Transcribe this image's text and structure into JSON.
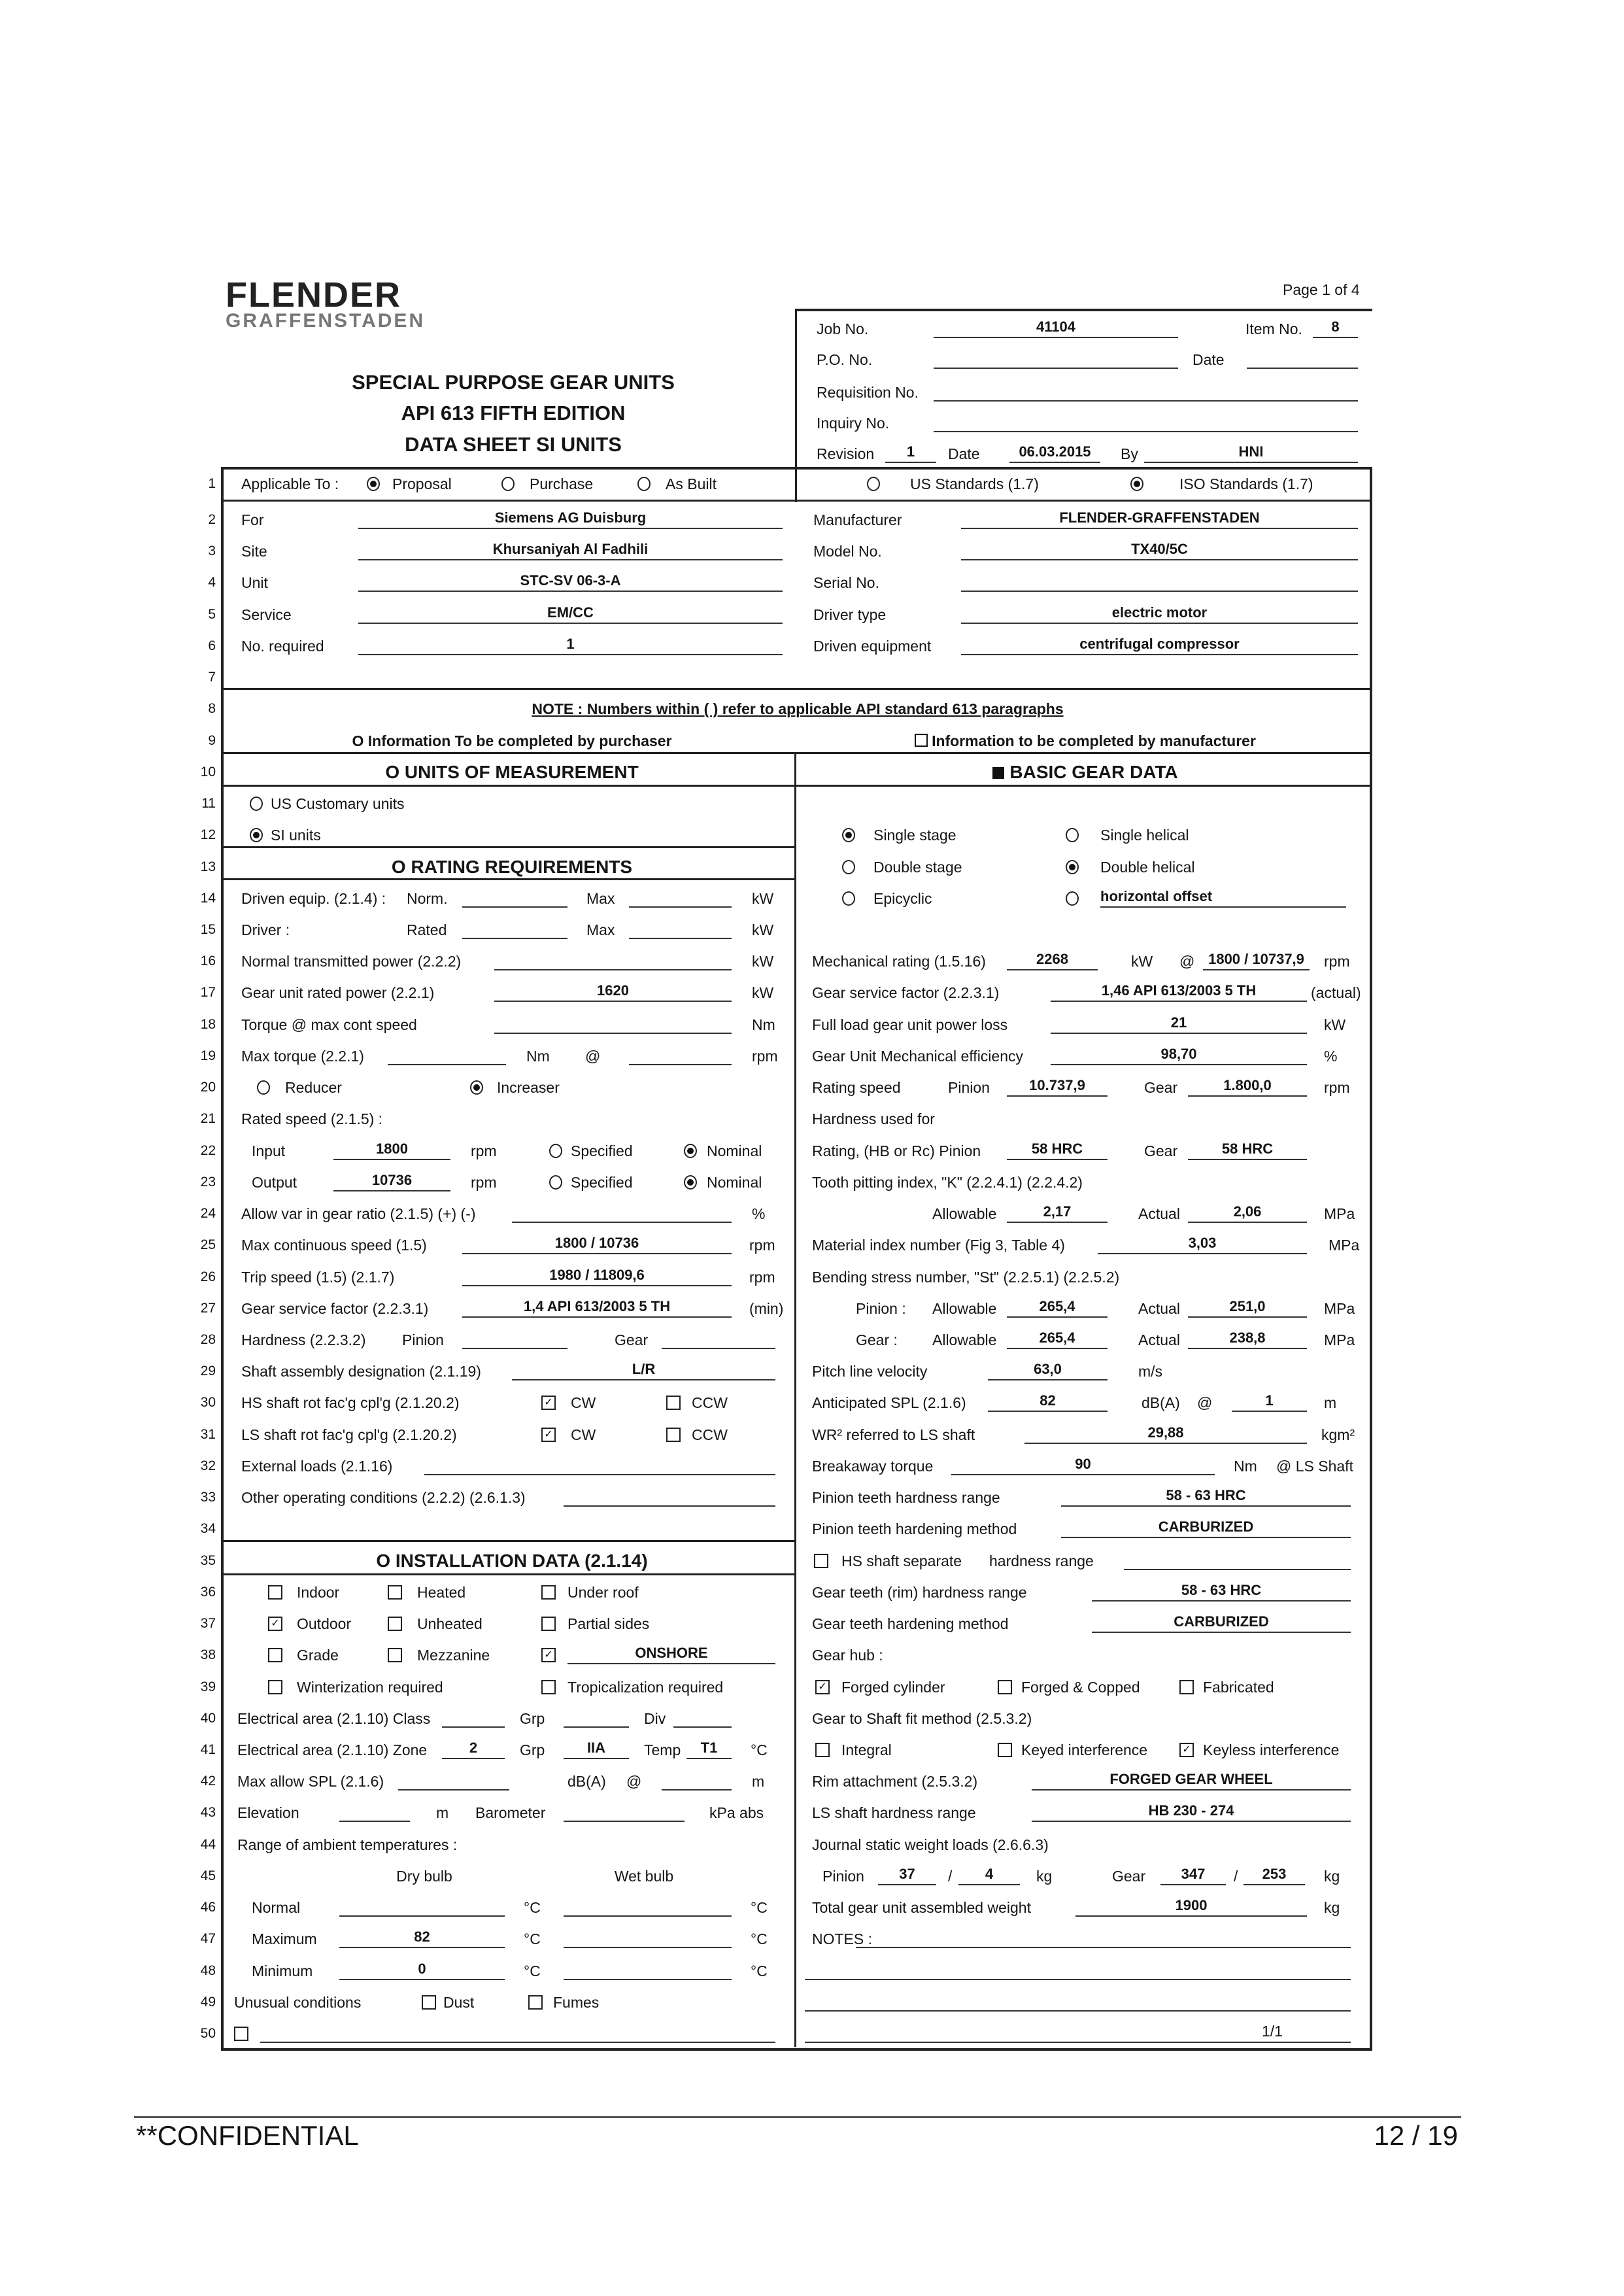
{
  "document": {
    "page_indicator": "Page 1 of 4",
    "logo_main": "FLENDER",
    "logo_sub": "GRAFFENSTADEN",
    "title_lines": [
      "SPECIAL PURPOSE GEAR UNITS",
      "API 613 FIFTH EDITION",
      "DATA SHEET SI UNITS"
    ]
  },
  "header": {
    "job_no": {
      "label": "Job No.",
      "value": "41104"
    },
    "item_no": {
      "label": "Item No.",
      "value": "8"
    },
    "po_no": {
      "label": "P.O. No.",
      "value": ""
    },
    "date": {
      "label": "Date",
      "value": ""
    },
    "requisition_no": {
      "label": "Requisition No.",
      "value": ""
    },
    "inquiry_no": {
      "label": "Inquiry No.",
      "value": ""
    },
    "revision": {
      "label": "Revision",
      "value": "1"
    },
    "revision_date": {
      "label": "Date",
      "value": "06.03.2015"
    },
    "by": {
      "label": "By",
      "value": "HNI"
    }
  },
  "row_numbers": [
    "1",
    "2",
    "3",
    "4",
    "5",
    "6",
    "7",
    "8",
    "9",
    "10",
    "11",
    "12",
    "13",
    "14",
    "15",
    "16",
    "17",
    "18",
    "19",
    "20",
    "21",
    "22",
    "23",
    "24",
    "25",
    "26",
    "27",
    "28",
    "29",
    "30",
    "31",
    "32",
    "33",
    "34",
    "35",
    "36",
    "37",
    "38",
    "39",
    "40",
    "41",
    "42",
    "43",
    "44",
    "45",
    "46",
    "47",
    "48",
    "49",
    "50"
  ],
  "applicable": {
    "label": "Applicable To :",
    "options": [
      {
        "label": "Proposal",
        "checked": true
      },
      {
        "label": "Purchase",
        "checked": false
      },
      {
        "label": "As Built",
        "checked": false
      }
    ]
  },
  "standards": [
    {
      "label": "US Standards (1.7)",
      "checked": false
    },
    {
      "label": "ISO Standards (1.7)",
      "checked": true
    }
  ],
  "general": {
    "left": [
      {
        "label": "For",
        "value": "Siemens AG Duisburg"
      },
      {
        "label": "Site",
        "value": "Khursaniyah Al Fadhili"
      },
      {
        "label": "Unit",
        "value": "STC-SV 06-3-A"
      },
      {
        "label": "Service",
        "value": "EM/CC"
      },
      {
        "label": "No. required",
        "value": "1"
      }
    ],
    "right": [
      {
        "label": "Manufacturer",
        "value": "FLENDER-GRAFFENSTADEN"
      },
      {
        "label": "Model No.",
        "value": "TX40/5C"
      },
      {
        "label": "Serial No.",
        "value": ""
      },
      {
        "label": "Driver type",
        "value": "electric motor"
      },
      {
        "label": "Driven equipment",
        "value": "centrifugal compressor"
      }
    ]
  },
  "note": "NOTE : Numbers within ( ) refer to applicable API standard 613 paragraphs",
  "legend": {
    "purchaser": "O Information To be completed by purchaser",
    "manufacturer": "Information to be completed by manufacturer"
  },
  "units": {
    "heading": "O UNITS OF MEASUREMENT",
    "us": {
      "label": "US Customary units",
      "checked": false
    },
    "si": {
      "label": "SI units",
      "checked": true
    }
  },
  "rating": {
    "heading": "O RATING REQUIREMENTS",
    "driven_equip": {
      "label": "Driven equip. (2.1.4) :",
      "norm_label": "Norm.",
      "norm": "",
      "max_label": "Max",
      "max": "",
      "unit": "kW"
    },
    "driver": {
      "label": "Driver :",
      "rated_label": "Rated",
      "rated": "",
      "max_label": "Max",
      "max": "",
      "unit": "kW"
    },
    "normal_power": {
      "label": "Normal transmitted power (2.2.2)",
      "value": "",
      "unit": "kW"
    },
    "rated_power": {
      "label": "Gear unit rated power (2.2.1)",
      "value": "1620",
      "unit": "kW"
    },
    "torque_max_cont": {
      "label": "Torque @ max cont speed",
      "value": "",
      "unit": "Nm"
    },
    "max_torque": {
      "label": "Max torque (2.2.1)",
      "value": "",
      "unit": "Nm",
      "at": "@",
      "speed": "",
      "speed_unit": "rpm"
    },
    "reducer": {
      "label": "Reducer",
      "checked": false
    },
    "increaser": {
      "label": "Increaser",
      "checked": true
    },
    "rated_speed_label": "Rated speed (2.1.5) :",
    "input": {
      "label": "Input",
      "value": "1800",
      "unit": "rpm",
      "specified_label": "Specified",
      "specified": false,
      "nominal_label": "Nominal",
      "nominal": true
    },
    "output": {
      "label": "Output",
      "value": "10736",
      "unit": "rpm",
      "specified_label": "Specified",
      "specified": false,
      "nominal_label": "Nominal",
      "nominal": true
    },
    "ratio_var": {
      "label": "Allow var in gear ratio (2.1.5) (+) (-)",
      "value": "",
      "unit": "%"
    },
    "max_cont_speed": {
      "label": "Max continuous speed (1.5)",
      "value": "1800  /  10736",
      "unit": "rpm"
    },
    "trip_speed": {
      "label": "Trip speed (1.5) (2.1.7)",
      "value": "1980  /  11809,6",
      "unit": "rpm"
    },
    "service_factor": {
      "label": "Gear service factor (2.2.3.1)",
      "value": "1,4   API 613/2003 5 TH",
      "unit": "(min)"
    },
    "hardness": {
      "label": "Hardness (2.2.3.2)",
      "pinion_label": "Pinion",
      "pinion": "",
      "gear_label": "Gear",
      "gear": ""
    },
    "shaft_assembly": {
      "label": "Shaft assembly designation (2.1.19)",
      "value": "L/R"
    },
    "hs_rot": {
      "label": "HS shaft rot fac'g cpl'g (2.1.20.2)",
      "cw_label": "CW",
      "cw": true,
      "ccw_label": "CCW",
      "ccw": false
    },
    "ls_rot": {
      "label": "LS shaft rot fac'g cpl'g (2.1.20.2)",
      "cw_label": "CW",
      "cw": true,
      "ccw_label": "CCW",
      "ccw": false
    },
    "external_loads": {
      "label": "External loads (2.1.16)",
      "value": ""
    },
    "other_conditions": {
      "label": "Other operating conditions (2.2.2) (2.6.1.3)",
      "value": ""
    }
  },
  "installation": {
    "heading": "O INSTALLATION DATA (2.1.14)",
    "indoor": {
      "label": "Indoor",
      "checked": false
    },
    "heated": {
      "label": "Heated",
      "checked": false
    },
    "under_roof": {
      "label": "Under roof",
      "checked": false
    },
    "outdoor": {
      "label": "Outdoor",
      "checked": true
    },
    "unheated": {
      "label": "Unheated",
      "checked": false
    },
    "partial_sides": {
      "label": "Partial sides",
      "checked": false
    },
    "grade": {
      "label": "Grade",
      "checked": false
    },
    "mezzanine": {
      "label": "Mezzanine",
      "checked": false
    },
    "onshore": {
      "checked": true,
      "value": "ONSHORE"
    },
    "winterization": {
      "label": "Winterization required",
      "checked": false
    },
    "tropicalization": {
      "label": "Tropicalization required",
      "checked": false
    },
    "elec_class": {
      "label": "Electrical area (2.1.10) Class",
      "class": "",
      "grp_label": "Grp",
      "grp": "",
      "div_label": "Div",
      "div": ""
    },
    "elec_zone": {
      "label": "Electrical area (2.1.10)  Zone",
      "zone": "2",
      "grp_label": "Grp",
      "grp": "IIA",
      "temp_label": "Temp",
      "temp": "T1",
      "unit": "°C"
    },
    "max_spl": {
      "label": "Max allow SPL (2.1.6)",
      "value": "",
      "unit": "dB(A)",
      "at": "@",
      "distance": "",
      "distance_unit": "m"
    },
    "elevation": {
      "label": "Elevation",
      "value": "",
      "unit": "m",
      "barometer_label": "Barometer",
      "barometer": "",
      "barometer_unit": "kPa abs"
    },
    "ambient_label": "Range of ambient temperatures :",
    "dry_bulb": "Dry bulb",
    "wet_bulb": "Wet bulb",
    "temps": [
      {
        "label": "Normal",
        "dry": "",
        "wet": "",
        "unit": "°C"
      },
      {
        "label": "Maximum",
        "dry": "82",
        "wet": "",
        "unit": "°C"
      },
      {
        "label": "Minimum",
        "dry": "0",
        "wet": "",
        "unit": "°C"
      }
    ],
    "unusual": {
      "label": "Unusual conditions",
      "dust_label": "Dust",
      "dust": false,
      "fumes_label": "Fumes",
      "fumes": false
    },
    "other": {
      "checked": false,
      "value": ""
    }
  },
  "gear": {
    "heading": "BASIC GEAR DATA",
    "single_stage": {
      "label": "Single stage",
      "checked": true
    },
    "double_stage": {
      "label": "Double stage",
      "checked": false
    },
    "epicyclic": {
      "label": "Epicyclic",
      "checked": false
    },
    "single_helical": {
      "label": "Single helical",
      "checked": false
    },
    "double_helical": {
      "label": "Double helical",
      "checked": true
    },
    "other_type": {
      "label": "horizontal offset",
      "checked": false
    },
    "mech_rating": {
      "label": "Mechanical rating (1.5.16)",
      "value": "2268",
      "unit": "kW",
      "at": "@",
      "speed": "1800 / 10737,9",
      "speed_unit": "rpm"
    },
    "service_factor": {
      "label": "Gear service factor (2.2.3.1)",
      "value": "1,46   API 613/2003 5 TH",
      "unit": "(actual)"
    },
    "power_loss": {
      "label": "Full load gear unit power loss",
      "value": "21",
      "unit": "kW"
    },
    "efficiency": {
      "label": "Gear Unit Mechanical efficiency",
      "value": "98,70",
      "unit": "%"
    },
    "rating_speed": {
      "label": "Rating speed",
      "pinion_label": "Pinion",
      "pinion": "10.737,9",
      "gear_label": "Gear",
      "gear": "1.800,0",
      "unit": "rpm"
    },
    "hardness_label": "Hardness used for",
    "rating_hardness": {
      "label": "Rating, (HB or Rc) Pinion",
      "pinion": "58 HRC",
      "gear_label": "Gear",
      "gear": "58 HRC"
    },
    "pitting_label": "Tooth pitting index, \"K\" (2.2.4.1) (2.2.4.2)",
    "pitting": {
      "allowable_label": "Allowable",
      "allowable": "2,17",
      "actual_label": "Actual",
      "actual": "2,06",
      "unit": "MPa"
    },
    "material_index": {
      "label": "Material index number (Fig 3, Table 4)",
      "value": "3,03",
      "unit": "MPa"
    },
    "bending_label": "Bending stress number, \"St\" (2.2.5.1) (2.2.5.2)",
    "bending_pinion": {
      "label": "Pinion :",
      "allowable_label": "Allowable",
      "allowable": "265,4",
      "actual_label": "Actual",
      "actual": "251,0",
      "unit": "MPa"
    },
    "bending_gear": {
      "label": "Gear :",
      "allowable_label": "Allowable",
      "allowable": "265,4",
      "actual_label": "Actual",
      "actual": "238,8",
      "unit": "MPa"
    },
    "pitch_velocity": {
      "label": "Pitch line velocity",
      "value": "63,0",
      "unit": "m/s"
    },
    "spl": {
      "label": "Anticipated SPL (2.1.6)",
      "value": "82",
      "unit": "dB(A)",
      "at": "@",
      "distance": "1",
      "distance_unit": "m"
    },
    "wr2": {
      "label": "WR² referred to LS shaft",
      "value": "29,88",
      "unit": "kgm²"
    },
    "breakaway": {
      "label": "Breakaway torque",
      "value": "90",
      "unit": "Nm",
      "where": "@ LS Shaft"
    },
    "pinion_hardness": {
      "label": "Pinion teeth hardness range",
      "value": "58 - 63 HRC"
    },
    "pinion_method": {
      "label": "Pinion teeth hardening method",
      "value": "CARBURIZED"
    },
    "hs_separate": {
      "label": "HS shaft separate",
      "checked": false,
      "range_label": "hardness range",
      "value": ""
    },
    "gear_hardness": {
      "label": "Gear teeth (rim) hardness range",
      "value": "58 - 63 HRC"
    },
    "gear_method": {
      "label": "Gear teeth hardening method",
      "value": "CARBURIZED"
    },
    "hub_label": "Gear hub :",
    "hub_forged_cylinder": {
      "label": "Forged cylinder",
      "checked": true
    },
    "hub_forged_copped": {
      "label": "Forged & Copped",
      "checked": false
    },
    "hub_fabricated": {
      "label": "Fabricated",
      "checked": false
    },
    "fit_label": "Gear to Shaft fit method (2.5.3.2)",
    "fit_integral": {
      "label": "Integral",
      "checked": false
    },
    "fit_keyed": {
      "label": "Keyed interference",
      "checked": false
    },
    "fit_keyless": {
      "label": "Keyless interference",
      "checked": true
    },
    "rim": {
      "label": "Rim attachment (2.5.3.2)",
      "value": "FORGED GEAR WHEEL"
    },
    "ls_hardness": {
      "label": "LS shaft hardness range",
      "value": "HB 230 - 274"
    },
    "journal_label": "Journal static weight loads (2.6.6.3)",
    "journal": {
      "pinion_label": "Pinion",
      "pinion_1": "37",
      "pinion_2": "4",
      "sep": "/",
      "unit": "kg",
      "gear_label": "Gear",
      "gear_1": "347",
      "gear_2": "253"
    },
    "total_weight": {
      "label": "Total gear unit assembled weight",
      "value": "1900",
      "unit": "kg"
    },
    "notes_label": "NOTES :",
    "notes": [
      "",
      "",
      "",
      ""
    ],
    "page_ref": "1/1"
  },
  "footer": {
    "confidential": "**CONFIDENTIAL",
    "page": "12 / 19"
  }
}
